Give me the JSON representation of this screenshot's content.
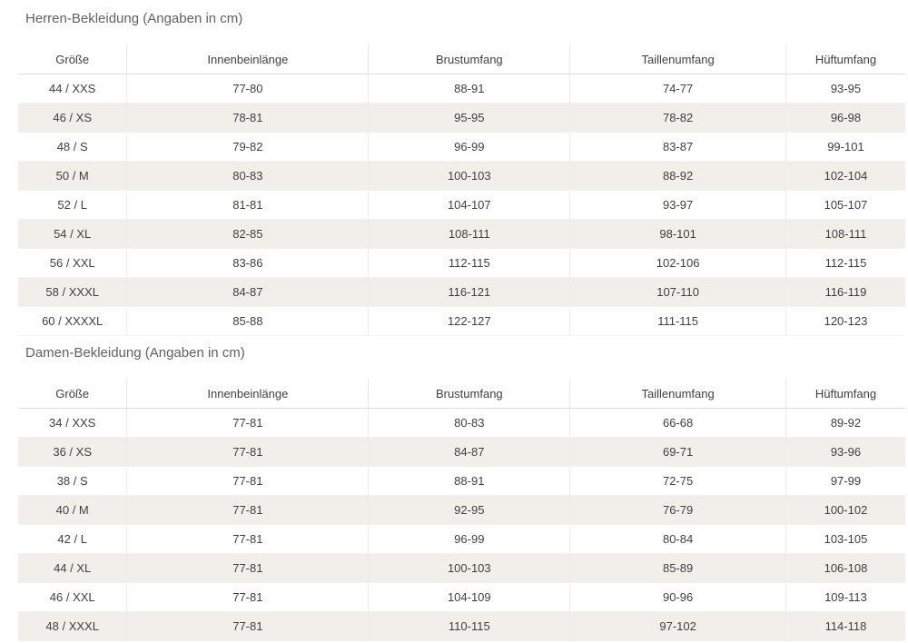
{
  "colors": {
    "row_stripe": "#f2efeb",
    "title_text": "#616160",
    "body_text": "#3f3f3e"
  },
  "tables": [
    {
      "title": "Herren-Bekleidung (Angaben in cm)",
      "columns": [
        "Größe",
        "Innenbeinlänge",
        "Brustumfang",
        "Taillenumfang",
        "Hüftumfang"
      ],
      "rows": [
        [
          "44 / XXS",
          "77-80",
          "88-91",
          "74-77",
          "93-95"
        ],
        [
          "46 / XS",
          "78-81",
          "95-95",
          "78-82",
          "96-98"
        ],
        [
          "48 / S",
          "79-82",
          "96-99",
          "83-87",
          "99-101"
        ],
        [
          "50 / M",
          "80-83",
          "100-103",
          "88-92",
          "102-104"
        ],
        [
          "52 / L",
          "81-81",
          "104-107",
          "93-97",
          "105-107"
        ],
        [
          "54 / XL",
          "82-85",
          "108-111",
          "98-101",
          "108-111"
        ],
        [
          "56 / XXL",
          "83-86",
          "112-115",
          "102-106",
          "112-115"
        ],
        [
          "58 / XXXL",
          "84-87",
          "116-121",
          "107-110",
          "116-119"
        ],
        [
          "60 / XXXXL",
          "85-88",
          "122-127",
          "111-115",
          "120-123"
        ]
      ]
    },
    {
      "title": "Damen-Bekleidung (Angaben in cm)",
      "columns": [
        "Größe",
        "Innenbeinlänge",
        "Brustumfang",
        "Taillenumfang",
        "Hüftumfang"
      ],
      "rows": [
        [
          "34 / XXS",
          "77-81",
          "80-83",
          "66-68",
          "89-92"
        ],
        [
          "36 / XS",
          "77-81",
          "84-87",
          "69-71",
          "93-96"
        ],
        [
          "38 / S",
          "77-81",
          "88-91",
          "72-75",
          "97-99"
        ],
        [
          "40 / M",
          "77-81",
          "92-95",
          "76-79",
          "100-102"
        ],
        [
          "42 / L",
          "77-81",
          "96-99",
          "80-84",
          "103-105"
        ],
        [
          "44 / XL",
          "77-81",
          "100-103",
          "85-89",
          "106-108"
        ],
        [
          "46 / XXL",
          "77-81",
          "104-109",
          "90-96",
          "109-113"
        ],
        [
          "48 / XXXL",
          "77-81",
          "110-115",
          "97-102",
          "114-118"
        ]
      ]
    }
  ]
}
